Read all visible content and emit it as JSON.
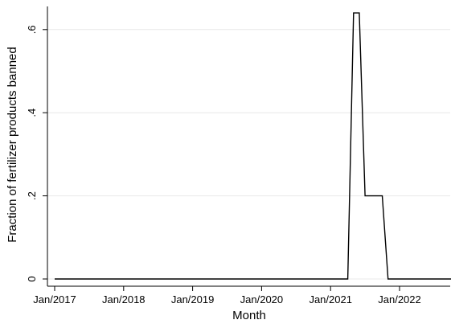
{
  "chart_data": {
    "type": "line",
    "title": "",
    "xlabel": "Month",
    "ylabel": "Fraction of fertilizer products banned",
    "x_tick_labels": [
      "Jan/2017",
      "Jan/2018",
      "Jan/2019",
      "Jan/2020",
      "Jan/2021",
      "Jan/2022"
    ],
    "y_tick_labels": [
      "0",
      ".2",
      ".4",
      ".6"
    ],
    "y_ticks": [
      0,
      0.2,
      0.4,
      0.6
    ],
    "xlim": [
      "Jan/2017",
      "Oct/2022"
    ],
    "ylim": [
      0,
      0.65
    ],
    "grid": true,
    "line_color": "#000000",
    "grid_color": "#e8e8e8",
    "series": [
      {
        "x": [
          "Jan/2017",
          "Apr/2021",
          "May/2021",
          "Jun/2021",
          "Jul/2021",
          "Oct/2021",
          "Nov/2021",
          "Oct/2022"
        ],
        "values": [
          0,
          0,
          0.64,
          0.64,
          0.2,
          0.2,
          0,
          0
        ]
      }
    ]
  }
}
